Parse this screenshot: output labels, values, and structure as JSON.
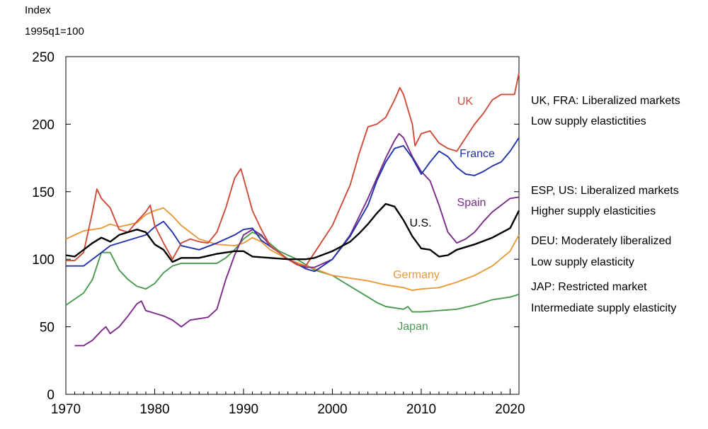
{
  "y_axis_title": {
    "line1": "Index",
    "line2": "1995q1=100"
  },
  "notes": [
    {
      "line1": "UK, FRA: Liberalized markets",
      "line2": "Low supply elastictities"
    },
    {
      "line1": "ESP, US: Liberalized markets",
      "line2": "Higher supply elasticities"
    },
    {
      "line1": "DEU: Moderately liberalized",
      "line2": "Low supply elasticity"
    },
    {
      "line1": "JAP: Restricted market",
      "line2": "Intermediate supply elasticity"
    }
  ],
  "chart_data": {
    "type": "line",
    "title": "",
    "xlabel": "",
    "ylabel": "Index 1995q1=100",
    "xlim": [
      1970,
      2021
    ],
    "ylim": [
      0,
      250
    ],
    "xticks": [
      1970,
      1980,
      1990,
      2000,
      2010,
      2020
    ],
    "yticks": [
      0,
      50,
      100,
      150,
      200,
      250
    ],
    "grid": false,
    "legend": "inline labels",
    "series": [
      {
        "name": "UK",
        "color": "#d04a3a",
        "x": [
          1970,
          1971,
          1972,
          1973,
          1973.5,
          1974,
          1975,
          1976,
          1977,
          1978,
          1979,
          1979.5,
          1980,
          1981,
          1982,
          1983,
          1984,
          1985,
          1986,
          1987,
          1988,
          1989,
          1989.7,
          1990,
          1991,
          1992,
          1993,
          1994,
          1995,
          1996,
          1997,
          1998,
          1999,
          2000,
          2001,
          2002,
          2003,
          2004,
          2005,
          2006,
          2007,
          2007.6,
          2008,
          2009,
          2009.3,
          2010,
          2011,
          2012,
          2013,
          2014,
          2015,
          2016,
          2017,
          2018,
          2019,
          2020,
          2020.5,
          2021
        ],
        "y": [
          99,
          99,
          105,
          135,
          152,
          145,
          138,
          122,
          120,
          128,
          135,
          140,
          125,
          112,
          100,
          112,
          115,
          113,
          112,
          120,
          138,
          160,
          167,
          160,
          136,
          122,
          110,
          105,
          100,
          96,
          95,
          105,
          115,
          125,
          140,
          155,
          178,
          198,
          200,
          205,
          218,
          227,
          222,
          200,
          184,
          193,
          195,
          186,
          182,
          180,
          190,
          200,
          208,
          218,
          222,
          222,
          222,
          238
        ]
      },
      {
        "name": "France",
        "color": "#2233aa",
        "x": [
          1970,
          1972,
          1974,
          1975,
          1977,
          1979,
          1980,
          1981,
          1982,
          1983,
          1985,
          1987,
          1989,
          1990,
          1991,
          1992,
          1994,
          1995,
          1997,
          1998,
          2000,
          2002,
          2004,
          2005,
          2006,
          2007,
          2008,
          2009,
          2010,
          2011,
          2012,
          2013,
          2014,
          2015,
          2016,
          2017,
          2018,
          2019,
          2020,
          2021
        ],
        "y": [
          95,
          95,
          105,
          110,
          114,
          118,
          124,
          128,
          120,
          110,
          107,
          112,
          118,
          122,
          123,
          114,
          105,
          100,
          93,
          91,
          100,
          117,
          140,
          158,
          172,
          182,
          184,
          175,
          163,
          172,
          180,
          176,
          168,
          163,
          162,
          165,
          169,
          172,
          180,
          190
        ]
      },
      {
        "name": "Spain",
        "color": "#7b2b8a",
        "x": [
          1971,
          1972,
          1973,
          1974,
          1974.5,
          1975,
          1976,
          1977,
          1978,
          1978.5,
          1979,
          1980,
          1981,
          1982,
          1983,
          1984,
          1985,
          1986,
          1987,
          1988,
          1989,
          1990,
          1991,
          1992,
          1993,
          1994,
          1995,
          1996,
          1997,
          1998,
          2000,
          2002,
          2004,
          2005,
          2006,
          2007,
          2007.5,
          2008,
          2009,
          2010,
          2011,
          2012,
          2013,
          2014,
          2015,
          2016,
          2017,
          2018,
          2019,
          2020,
          2021
        ],
        "y": [
          36,
          36,
          40,
          47,
          50,
          45,
          50,
          58,
          67,
          69,
          62,
          60,
          58,
          55,
          50,
          55,
          56,
          57,
          63,
          85,
          103,
          118,
          122,
          118,
          110,
          105,
          100,
          96,
          94,
          94,
          100,
          118,
          145,
          160,
          175,
          188,
          193,
          190,
          176,
          165,
          158,
          140,
          120,
          112,
          115,
          120,
          128,
          135,
          140,
          145,
          146
        ]
      },
      {
        "name": "U.S.",
        "color": "#000000",
        "x": [
          1970,
          1971,
          1972,
          1973,
          1974,
          1975,
          1976,
          1977,
          1978,
          1979,
          1980,
          1981,
          1982,
          1983,
          1985,
          1987,
          1989,
          1990,
          1991,
          1993,
          1995,
          1997,
          1998,
          2000,
          2002,
          2003,
          2004,
          2005,
          2006,
          2007,
          2008,
          2009,
          2010,
          2011,
          2012,
          2013,
          2014,
          2016,
          2018,
          2020,
          2021
        ],
        "y": [
          103,
          102,
          107,
          112,
          116,
          113,
          118,
          120,
          122,
          120,
          111,
          107,
          98,
          101,
          101,
          104,
          106,
          106,
          102,
          101,
          100,
          100,
          101,
          106,
          113,
          119,
          126,
          134,
          141,
          139,
          129,
          117,
          108,
          107,
          102,
          103,
          107,
          111,
          116,
          123,
          136
        ]
      },
      {
        "name": "Germany",
        "color": "#e89a38",
        "x": [
          1970,
          1972,
          1974,
          1975,
          1976,
          1978,
          1979,
          1980,
          1981,
          1982,
          1983,
          1985,
          1987,
          1989,
          1990,
          1991,
          1992,
          1993,
          1995,
          1997,
          1998,
          2000,
          2002,
          2004,
          2006,
          2008,
          2009,
          2010,
          2012,
          2014,
          2016,
          2018,
          2020,
          2021
        ],
        "y": [
          115,
          121,
          123,
          126,
          124,
          127,
          133,
          136,
          138,
          132,
          125,
          115,
          111,
          110,
          112,
          116,
          113,
          107,
          100,
          95,
          93,
          88,
          86,
          84,
          81,
          79,
          77,
          78,
          79,
          83,
          88,
          95,
          106,
          118
        ]
      },
      {
        "name": "Japan",
        "color": "#4a9a50",
        "x": [
          1970,
          1972,
          1973,
          1974,
          1975,
          1976,
          1977,
          1978,
          1979,
          1980,
          1981,
          1982,
          1983,
          1985,
          1987,
          1988,
          1989,
          1990,
          1991,
          1992,
          1994,
          1996,
          1998,
          2000,
          2002,
          2004,
          2005,
          2006,
          2008,
          2008.5,
          2009,
          2010,
          2012,
          2014,
          2016,
          2018,
          2020,
          2021
        ],
        "y": [
          66,
          75,
          85,
          105,
          105,
          92,
          85,
          80,
          78,
          82,
          90,
          95,
          97,
          97,
          97,
          101,
          107,
          115,
          120,
          117,
          106,
          100,
          92,
          88,
          80,
          72,
          68,
          65,
          63,
          65,
          61,
          61,
          62,
          63,
          66,
          70,
          72,
          74
        ]
      }
    ]
  }
}
